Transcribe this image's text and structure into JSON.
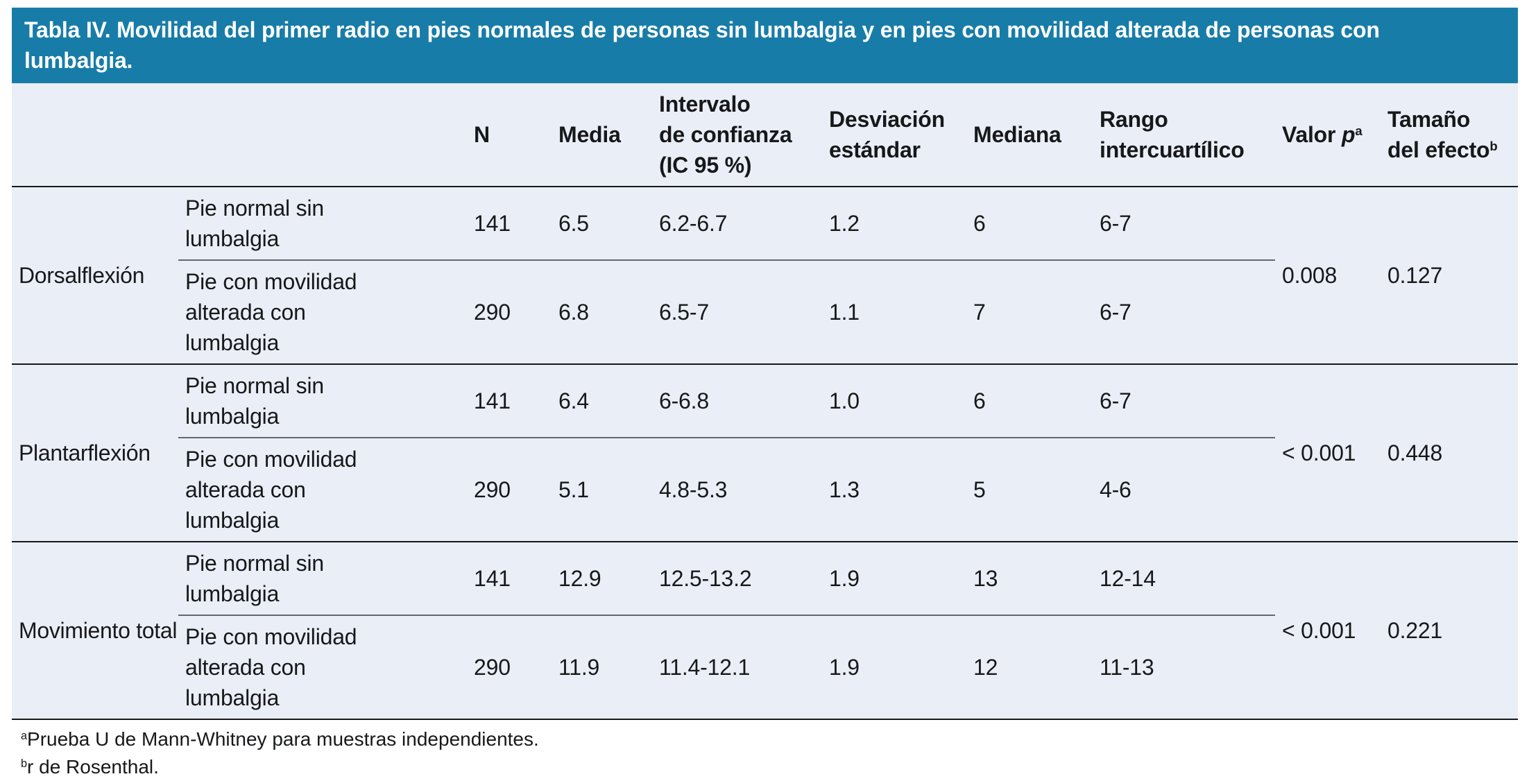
{
  "title": "Tabla IV. Movilidad del primer radio en pies normales de personas sin lumbalgia y en pies con movilidad alterada de personas con lumbalgia.",
  "header": {
    "n": "N",
    "media": "Media",
    "ic_lines": [
      "Intervalo",
      "de confianza",
      "(IC 95 %)"
    ],
    "desviacion_lines": [
      "Desviación",
      "estándar"
    ],
    "mediana": "Mediana",
    "rango_lines": [
      "Rango",
      "intercuartílico"
    ],
    "valor_p": {
      "text": "Valor ",
      "italic": "p",
      "sup": "a"
    },
    "tamano": {
      "line1": "Tamaño",
      "line2": "del efecto",
      "sup": "b"
    }
  },
  "groups": [
    {
      "label": "Dorsalflexión",
      "rows": [
        {
          "condition": "Pie normal sin lumbalgia",
          "n": "141",
          "media": "6.5",
          "ic": "6.2-6.7",
          "de": "1.2",
          "mediana": "6",
          "rango": "6-7"
        },
        {
          "condition": "Pie con movilidad alterada con lumbalgia",
          "n": "290",
          "media": "6.8",
          "ic": "6.5-7",
          "de": "1.1",
          "mediana": "7",
          "rango": "6-7"
        }
      ],
      "valor_p": "0.008",
      "tamano_efecto": "0.127"
    },
    {
      "label": "Plantarflexión",
      "rows": [
        {
          "condition": "Pie normal sin lumbalgia",
          "n": "141",
          "media": "6.4",
          "ic": "6-6.8",
          "de": "1.0",
          "mediana": "6",
          "rango": "6-7"
        },
        {
          "condition": "Pie con movilidad alterada con lumbalgia",
          "n": "290",
          "media": "5.1",
          "ic": "4.8-5.3",
          "de": "1.3",
          "mediana": "5",
          "rango": "4-6"
        }
      ],
      "valor_p": "< 0.001",
      "tamano_efecto": "0.448"
    },
    {
      "label": "Movimiento total",
      "rows": [
        {
          "condition": "Pie normal sin lumbalgia",
          "n": "141",
          "media": "12.9",
          "ic": "12.5-13.2",
          "de": "1.9",
          "mediana": "13",
          "rango": "12-14"
        },
        {
          "condition": "Pie con movilidad alterada con lumbalgia",
          "n": "290",
          "media": "11.9",
          "ic": "11.4-12.1",
          "de": "1.9",
          "mediana": "12",
          "rango": "11-13"
        }
      ],
      "valor_p": "< 0.001",
      "tamano_efecto": "0.221"
    }
  ],
  "footnotes": [
    {
      "sup": "a",
      "text": "Prueba U de Mann-Whitney para muestras independientes."
    },
    {
      "sup": "b",
      "text": "r de Rosenthal."
    }
  ],
  "colors": {
    "title_bar_bg": "#187CA8",
    "title_text": "#FFFFFF",
    "table_bg": "#EAEEF6",
    "rule_dark": "#17181A",
    "rule_light": "#64676C",
    "text": "#17181A",
    "page_bg": "#FFFFFF"
  }
}
